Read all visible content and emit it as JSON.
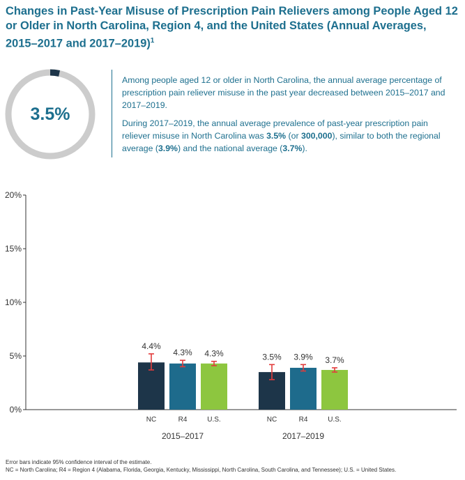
{
  "title": {
    "text": "Changes in Past-Year Misuse of Prescription Pain Relievers among People Aged 12 or Older in North Carolina, Region 4, and the United States (Annual Averages, 2015–2017 and 2017–2019)",
    "footnote_mark": "1"
  },
  "ring": {
    "value": "3.5%",
    "fraction": 0.035,
    "track_color": "#cccccc",
    "fill_color": "#1d3549"
  },
  "paragraph1": "Among people aged 12 or older in North Carolina, the annual average percentage of prescription pain reliever misuse in the past year decreased between 2015–2017 and 2017–2019.",
  "paragraph2": {
    "t1": "During 2017–2019, the annual average prevalence of past-year prescription pain reliever misuse in North Carolina was ",
    "b1": "3.5%",
    "t2": " (or ",
    "b2": "300,000",
    "t3": "), similar to both the regional average (",
    "b3": "3.9%",
    "t4": ") and the national average (",
    "b4": "3.7%",
    "t5": ")."
  },
  "chart_data": {
    "type": "bar",
    "groups": [
      "2015–2017",
      "2017–2019"
    ],
    "categories": [
      "NC",
      "R4",
      "U.S."
    ],
    "series": [
      {
        "group": "2015–2017",
        "values": [
          4.4,
          4.3,
          4.3
        ],
        "labels": [
          "4.4%",
          "4.3%",
          "4.3%"
        ],
        "error_low": [
          3.7,
          4.0,
          4.1
        ],
        "error_high": [
          5.2,
          4.6,
          4.5
        ]
      },
      {
        "group": "2017–2019",
        "values": [
          3.5,
          3.9,
          3.7
        ],
        "labels": [
          "3.5%",
          "3.9%",
          "3.7%"
        ],
        "error_low": [
          2.8,
          3.6,
          3.5
        ],
        "error_high": [
          4.2,
          4.2,
          3.9
        ]
      }
    ],
    "bar_colors": [
      "#1d3549",
      "#1e6b8c",
      "#8dc63f"
    ],
    "error_bar_color": "#e23b3b",
    "yticks": [
      "0%",
      "5%",
      "10%",
      "15%",
      "20%"
    ],
    "ylim": [
      0,
      20
    ],
    "grid": false
  },
  "footnote": {
    "line1": "Error bars indicate 95% confidence interval of the estimate.",
    "line2": "NC = North Carolina; R4 = Region 4 (Alabama, Florida, Georgia, Kentucky, Mississippi, North Carolina, South Carolina, and Tennessee); U.S. = United States."
  }
}
